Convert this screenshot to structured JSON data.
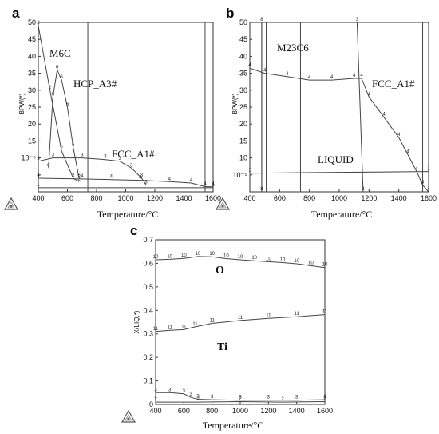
{
  "chart_data": [
    {
      "id": "a",
      "type": "line",
      "panel_label": "a",
      "xlabel": "Temperature/°C",
      "ylabel": "BPW(*)",
      "xlim": [
        400,
        1600
      ],
      "ylim": [
        0,
        50
      ],
      "xticks": [
        400,
        600,
        800,
        1000,
        1200,
        1400,
        1600
      ],
      "yticks": [
        5,
        10,
        15,
        20,
        25,
        30,
        35,
        40,
        45,
        50
      ],
      "ytick_labels": [
        "",
        "10⁻⁵",
        "15",
        "20",
        "25",
        "30",
        "35",
        "40",
        "45",
        "50"
      ],
      "vlines": [
        740,
        1545
      ],
      "labels": [
        "M6C",
        "HCP_A3#",
        "FCC_A1#"
      ],
      "series": [
        {
          "marker": "2",
          "x": [
            400,
            480,
            560,
            640,
            680
          ],
          "y": [
            49,
            30,
            12,
            4,
            3
          ]
        },
        {
          "marker": "6",
          "x": [
            470,
            500,
            530,
            560,
            600,
            640,
            680
          ],
          "y": [
            7,
            28,
            36,
            33,
            25,
            13,
            4
          ]
        },
        {
          "marker": "3",
          "x": [
            400,
            500,
            700,
            860,
            960,
            1040,
            1110,
            1140
          ],
          "y": [
            9,
            10,
            10,
            9.5,
            9,
            7,
            4,
            2
          ]
        },
        {
          "marker": "4",
          "x": [
            400,
            700,
            900,
            1100,
            1300,
            1450,
            1545,
            1600
          ],
          "y": [
            4,
            3.8,
            3.6,
            3.4,
            3,
            2.6,
            1.5,
            1.5
          ]
        },
        {
          "marker": "1",
          "x": [
            400,
            1600
          ],
          "y": [
            1.2,
            1.2
          ]
        }
      ]
    },
    {
      "id": "b",
      "type": "line",
      "panel_label": "b",
      "xlabel": "Temperature/°C",
      "ylabel": "BPW(*)",
      "xlim": [
        400,
        1600
      ],
      "ylim": [
        0,
        50
      ],
      "xticks": [
        400,
        600,
        800,
        1000,
        1200,
        1400,
        1600
      ],
      "yticks": [
        5,
        10,
        15,
        20,
        25,
        30,
        35,
        40,
        45,
        50
      ],
      "ytick_labels": [
        "10⁻⁵",
        "10",
        "15",
        "20",
        "25",
        "30",
        "35",
        "40",
        "45",
        "50"
      ],
      "vlines": [
        480,
        510,
        740,
        1560
      ],
      "labels": [
        "M23C6",
        "FCC_A1#",
        "LIQUID"
      ],
      "series": [
        {
          "marker": "4",
          "x": [
            400,
            500,
            650,
            800,
            950,
            1100,
            1150,
            1200,
            1300,
            1400,
            1460,
            1520,
            1560,
            1600
          ],
          "y": [
            36.5,
            35,
            34,
            33,
            33,
            33.5,
            33.5,
            28,
            22,
            16,
            11,
            6,
            2,
            0
          ]
        },
        {
          "marker": "1",
          "x": [
            400,
            1600
          ],
          "y": [
            5.5,
            6
          ]
        },
        {
          "marker": "8",
          "x": [
            480,
            480
          ],
          "y": [
            50,
            0
          ]
        },
        {
          "marker": "3",
          "x": [
            1120,
            1160
          ],
          "y": [
            50,
            0
          ]
        }
      ]
    },
    {
      "id": "c",
      "type": "line",
      "panel_label": "c",
      "xlabel": "Temperature/°C",
      "ylabel": "X(LIQ,*)",
      "xlim": [
        400,
        1600
      ],
      "ylim": [
        0,
        0.7
      ],
      "xticks": [
        400,
        600,
        800,
        1000,
        1200,
        1400,
        1600
      ],
      "yticks": [
        0,
        0.1,
        0.2,
        0.3,
        0.4,
        0.5,
        0.6,
        0.7
      ],
      "ytick_labels": [
        "0",
        "0.1",
        "0.2",
        "0.3",
        "0.4",
        "0.5",
        "0.6",
        "0.7"
      ],
      "labels": [
        "O",
        "Ti"
      ],
      "series": [
        {
          "name": "O",
          "marker": "10",
          "x": [
            400,
            500,
            600,
            700,
            800,
            900,
            1000,
            1100,
            1200,
            1300,
            1400,
            1500,
            1600
          ],
          "y": [
            0.615,
            0.617,
            0.621,
            0.629,
            0.628,
            0.62,
            0.615,
            0.611,
            0.607,
            0.603,
            0.598,
            0.59,
            0.582
          ]
        },
        {
          "name": "Ti",
          "marker": "11",
          "x": [
            400,
            500,
            600,
            680,
            800,
            1000,
            1200,
            1400,
            1600
          ],
          "y": [
            0.31,
            0.315,
            0.318,
            0.33,
            0.345,
            0.357,
            0.366,
            0.373,
            0.382
          ]
        },
        {
          "marker": "3",
          "x": [
            400,
            500,
            600,
            650,
            700,
            800,
            1000,
            1200,
            1400,
            1600
          ],
          "y": [
            0.05,
            0.05,
            0.045,
            0.03,
            0.022,
            0.02,
            0.018,
            0.018,
            0.018,
            0.02
          ]
        },
        {
          "marker": "2",
          "x": [
            400,
            700,
            1000,
            1300,
            1600
          ],
          "y": [
            0.01,
            0.01,
            0.012,
            0.01,
            0.012
          ]
        }
      ]
    }
  ]
}
